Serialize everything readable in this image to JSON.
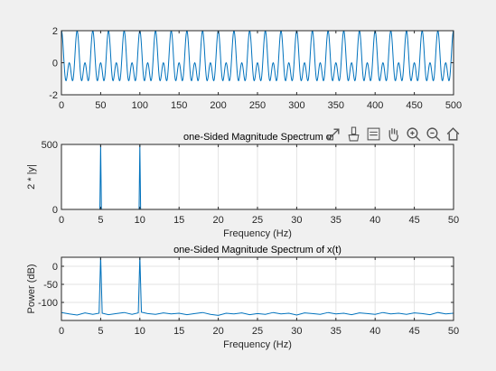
{
  "chart_data": [
    {
      "type": "line",
      "title": "",
      "xlabel": "",
      "ylabel": "",
      "xlim": [
        0,
        500
      ],
      "ylim": [
        -2,
        2
      ],
      "xticks": [
        "0",
        "50",
        "100",
        "150",
        "200",
        "250",
        "300",
        "350",
        "400",
        "450",
        "500"
      ],
      "yticks": [
        "-2",
        "0",
        "2"
      ],
      "grid": false,
      "series": [
        {
          "color": "#0072bd",
          "signal": {
            "components": [
              {
                "amplitude": 1,
                "period_samples": 20
              },
              {
                "amplitude": 1,
                "period_samples": 10
              }
            ],
            "x_range": [
              0,
              500
            ]
          }
        }
      ]
    },
    {
      "type": "line",
      "title": "one-Sided Magnitude Spectrum o",
      "xlabel": "Frequency (Hz)",
      "ylabel": "2 * |y|",
      "xlim": [
        0,
        50
      ],
      "ylim": [
        0,
        500
      ],
      "xticks": [
        "0",
        "5",
        "10",
        "15",
        "20",
        "25",
        "30",
        "35",
        "40",
        "45",
        "50"
      ],
      "yticks": [
        "0",
        "500"
      ],
      "grid": true,
      "series": [
        {
          "color": "#0072bd",
          "x": [
            0,
            4.9,
            5,
            5.1,
            9.9,
            10,
            10.1,
            50
          ],
          "y": [
            0,
            0,
            500,
            0,
            0,
            500,
            0,
            0
          ]
        }
      ]
    },
    {
      "type": "line",
      "title": "one-Sided Magnitude Spectrum of x(t)",
      "xlabel": "Frequency (Hz)",
      "ylabel": "Power (dB)",
      "xlim": [
        0,
        50
      ],
      "ylim": [
        -150,
        25
      ],
      "xticks": [
        "0",
        "5",
        "10",
        "15",
        "20",
        "25",
        "30",
        "35",
        "40",
        "45",
        "50"
      ],
      "yticks": [
        "0",
        "-50",
        "-100"
      ],
      "grid": true,
      "series": [
        {
          "color": "#0072bd",
          "x": [
            0,
            1,
            2,
            3,
            4,
            4.8,
            5,
            5.2,
            6,
            7,
            8,
            9,
            9.8,
            10,
            10.2,
            11,
            12,
            13,
            14,
            15,
            16,
            17,
            18,
            19,
            20,
            21,
            22,
            23,
            24,
            25,
            26,
            27,
            28,
            29,
            30,
            31,
            32,
            33,
            34,
            35,
            36,
            37,
            38,
            39,
            40,
            41,
            42,
            43,
            44,
            45,
            46,
            47,
            48,
            49,
            50
          ],
          "y": [
            -128,
            -132,
            -135,
            -129,
            -133,
            -130,
            27,
            -130,
            -134,
            -131,
            -128,
            -133,
            -129,
            27,
            -127,
            -131,
            -133,
            -129,
            -132,
            -130,
            -134,
            -131,
            -128,
            -133,
            -136,
            -130,
            -132,
            -129,
            -134,
            -131,
            -133,
            -128,
            -132,
            -130,
            -135,
            -129,
            -131,
            -133,
            -128,
            -132,
            -130,
            -134,
            -129,
            -131,
            -133,
            -128,
            -132,
            -130,
            -133,
            -129,
            -131,
            -134,
            -128,
            -132,
            -130
          ]
        }
      ]
    }
  ],
  "toolbar": {
    "icons": [
      "export-icon",
      "brush-icon",
      "data-tips-icon",
      "pan-icon",
      "zoom-in-icon",
      "zoom-out-icon",
      "home-icon"
    ]
  }
}
